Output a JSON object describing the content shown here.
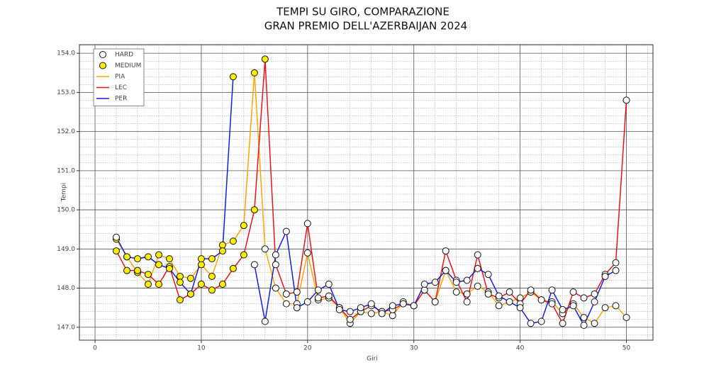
{
  "chart_data": {
    "type": "line",
    "title": [
      "TEMPI SU GIRO, COMPARAZIONE",
      "GRAN PREMIO DELL'AZERBAIJAN 2024"
    ],
    "x_label": "Giri",
    "y_label": "Tempi",
    "x": [
      2,
      3,
      4,
      5,
      6,
      7,
      8,
      9,
      10,
      11,
      12,
      13,
      14,
      15,
      16,
      17,
      18,
      19,
      20,
      21,
      22,
      23,
      24,
      25,
      26,
      27,
      28,
      29,
      30,
      31,
      32,
      33,
      34,
      35,
      36,
      37,
      38,
      39,
      40,
      41,
      42,
      43,
      44,
      45,
      46,
      47,
      48,
      49,
      50
    ],
    "xlim": [
      -1.47,
      52.5
    ],
    "ylim": [
      146.67,
      154.22
    ],
    "xticks": [
      0,
      10,
      20,
      30,
      40,
      50
    ],
    "yticks": [
      {
        "value": 147,
        "label": "147.0"
      },
      {
        "value": 148,
        "label": "148.0"
      },
      {
        "value": 149,
        "label": "149.0"
      },
      {
        "value": 150,
        "label": "150.0"
      },
      {
        "value": 151,
        "label": "151.0"
      },
      {
        "value": 152,
        "label": "152.0"
      },
      {
        "value": 153,
        "label": "153.0"
      },
      {
        "value": 154,
        "label": "154.0"
      }
    ],
    "grid": true,
    "minor_grid": true,
    "legend": "upper left",
    "markers": [
      {
        "name": "HARD",
        "color": "#ffffff"
      },
      {
        "name": "MEDIUM",
        "color": "#ffee00"
      }
    ],
    "series": [
      {
        "name": "PIA",
        "color": "#ffa500",
        "values": [
          149.25,
          148.8,
          148.4,
          148.1,
          148.85,
          148.75,
          148.3,
          148.25,
          148.6,
          148.3,
          149.1,
          149.2,
          149.6,
          153.5,
          149.0,
          148.0,
          147.6,
          147.6,
          148.9,
          147.7,
          147.75,
          147.5,
          147.1,
          147.4,
          147.35,
          147.4,
          147.3,
          147.65,
          147.55,
          147.95,
          147.65,
          148.45,
          147.9,
          147.85,
          148.05,
          147.9,
          147.55,
          147.65,
          147.75,
          147.9,
          147.7,
          147.65,
          147.35,
          147.6,
          147.25,
          147.1,
          147.5,
          147.55,
          147.25
        ],
        "tyres": [
          1,
          1,
          1,
          1,
          1,
          1,
          1,
          1,
          1,
          1,
          1,
          1,
          1,
          1,
          0,
          0,
          0,
          0,
          0,
          0,
          0,
          0,
          0,
          0,
          0,
          0,
          0,
          0,
          0,
          0,
          0,
          0,
          0,
          0,
          0,
          0,
          0,
          0,
          0,
          0,
          0,
          0,
          0,
          0,
          0,
          0,
          0,
          0,
          0
        ]
      },
      {
        "name": "LEC",
        "color": "#e8141a",
        "values": [
          148.95,
          148.45,
          148.45,
          148.35,
          148.1,
          148.55,
          147.7,
          147.85,
          148.1,
          147.95,
          148.1,
          148.5,
          148.85,
          150.0,
          153.85,
          148.6,
          147.85,
          147.9,
          149.65,
          147.75,
          147.8,
          147.5,
          147.2,
          147.4,
          147.55,
          147.4,
          147.45,
          147.6,
          147.55,
          147.95,
          147.65,
          148.95,
          148.2,
          147.65,
          148.85,
          147.85,
          147.75,
          147.9,
          147.6,
          147.95,
          147.7,
          147.6,
          147.1,
          147.9,
          147.75,
          147.85,
          148.35,
          148.65,
          152.8
        ],
        "tyres": [
          1,
          1,
          1,
          1,
          1,
          1,
          1,
          1,
          1,
          1,
          1,
          1,
          1,
          1,
          1,
          0,
          0,
          0,
          0,
          0,
          0,
          0,
          0,
          0,
          0,
          0,
          0,
          0,
          0,
          0,
          0,
          0,
          0,
          0,
          0,
          0,
          0,
          0,
          0,
          0,
          0,
          0,
          0,
          0,
          0,
          0,
          0,
          0,
          0
        ]
      },
      {
        "name": "PER",
        "color": "#1020e0",
        "values": [
          149.3,
          148.8,
          148.75,
          148.8,
          148.6,
          148.5,
          148.15,
          147.85,
          148.75,
          148.75,
          148.95,
          153.4,
          null,
          148.6,
          147.15,
          148.85,
          149.45,
          147.5,
          147.65,
          147.95,
          148.1,
          147.45,
          147.4,
          147.5,
          147.6,
          147.35,
          147.55,
          147.6,
          147.55,
          148.1,
          148.15,
          148.45,
          148.15,
          148.2,
          148.5,
          148.35,
          147.8,
          147.65,
          147.5,
          147.1,
          147.15,
          147.95,
          147.45,
          147.55,
          147.05,
          147.65,
          148.3,
          148.45,
          null
        ],
        "tyres": [
          0,
          1,
          1,
          1,
          1,
          1,
          1,
          1,
          1,
          1,
          1,
          1,
          0,
          0,
          0,
          0,
          0,
          0,
          0,
          0,
          0,
          0,
          0,
          0,
          0,
          0,
          0,
          0,
          0,
          0,
          0,
          0,
          0,
          0,
          0,
          0,
          0,
          0,
          0,
          0,
          0,
          0,
          0,
          0,
          0,
          0,
          0,
          0,
          0
        ]
      }
    ]
  }
}
